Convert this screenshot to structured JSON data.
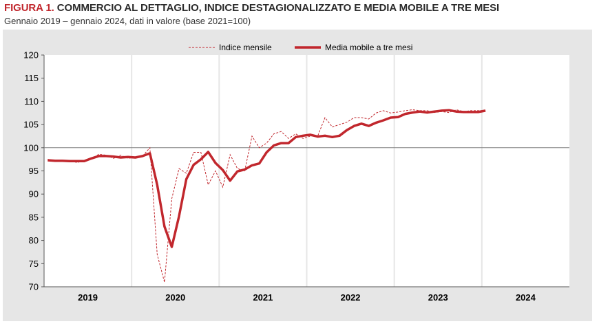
{
  "header": {
    "figure_label": "FIGURA 1.",
    "title": "COMMERCIO AL DETTAGLIO, INDICE DESTAGIONALIZZATO E MEDIA MOBILE A TRE MESI",
    "subtitle": "Gennaio 2019 – gennaio 2024, dati in valore (base 2021=100)"
  },
  "colors": {
    "accent": "#c1272d",
    "panel": "#e6e6e6",
    "plot": "#ffffff",
    "reference": "#7f7f7f"
  },
  "chart_data": {
    "type": "line",
    "title": "COMMERCIO AL DETTAGLIO, INDICE DESTAGIONALIZZATO E MEDIA MOBILE A TRE MESI",
    "xlabel": "",
    "ylabel": "",
    "ylim": [
      70,
      120
    ],
    "yticks": [
      70,
      75,
      80,
      85,
      90,
      95,
      100,
      105,
      110,
      115,
      120
    ],
    "year_labels": [
      "2019",
      "2020",
      "2021",
      "2022",
      "2023",
      "2024"
    ],
    "reference_line": 100,
    "legend_position": "top",
    "x": [
      "2019-01",
      "2019-02",
      "2019-03",
      "2019-04",
      "2019-05",
      "2019-06",
      "2019-07",
      "2019-08",
      "2019-09",
      "2019-10",
      "2019-11",
      "2019-12",
      "2020-01",
      "2020-02",
      "2020-03",
      "2020-04",
      "2020-05",
      "2020-06",
      "2020-07",
      "2020-08",
      "2020-09",
      "2020-10",
      "2020-11",
      "2020-12",
      "2021-01",
      "2021-02",
      "2021-03",
      "2021-04",
      "2021-05",
      "2021-06",
      "2021-07",
      "2021-08",
      "2021-09",
      "2021-10",
      "2021-11",
      "2021-12",
      "2022-01",
      "2022-02",
      "2022-03",
      "2022-04",
      "2022-05",
      "2022-06",
      "2022-07",
      "2022-08",
      "2022-09",
      "2022-10",
      "2022-11",
      "2022-12",
      "2023-01",
      "2023-02",
      "2023-03",
      "2023-04",
      "2023-05",
      "2023-06",
      "2023-07",
      "2023-08",
      "2023-09",
      "2023-10",
      "2023-11",
      "2023-12",
      "2024-01"
    ],
    "series": [
      {
        "name": "Indice mensile",
        "style": "dashed",
        "values": [
          97.5,
          97.2,
          97.0,
          97.3,
          96.8,
          97.2,
          97.5,
          98.6,
          98.4,
          97.7,
          98.4,
          97.7,
          98.0,
          98.2,
          100.0,
          77.0,
          71.0,
          89.0,
          95.5,
          94.5,
          99.0,
          99.0,
          92.0,
          95.0,
          91.5,
          98.5,
          95.5,
          95.0,
          102.5,
          100.0,
          101.0,
          103.0,
          103.5,
          102.0,
          103.0,
          102.0,
          102.5,
          102.5,
          106.5,
          104.5,
          105.0,
          105.5,
          106.5,
          106.5,
          106.2,
          107.5,
          108.0,
          107.5,
          107.7,
          108.0,
          108.2,
          108.0,
          108.0,
          107.6,
          107.8,
          107.6,
          108.2,
          107.8,
          108.0,
          108.0,
          108.0
        ]
      },
      {
        "name": "Media mobile a tre mesi",
        "style": "solid",
        "values": [
          97.3,
          97.2,
          97.2,
          97.1,
          97.1,
          97.1,
          97.7,
          98.2,
          98.2,
          98.1,
          97.9,
          98.0,
          97.9,
          98.2,
          98.8,
          92.0,
          83.0,
          78.6,
          85.2,
          93.2,
          96.3,
          97.5,
          99.1,
          96.7,
          95.2,
          92.9,
          94.9,
          95.3,
          96.2,
          96.6,
          99.0,
          100.5,
          101.0,
          101.0,
          102.3,
          102.6,
          102.8,
          102.4,
          102.6,
          102.3,
          102.6,
          103.8,
          104.7,
          105.2,
          104.7,
          105.4,
          105.9,
          106.5,
          106.6,
          107.3,
          107.6,
          107.8,
          107.6,
          107.8,
          108.0,
          108.1,
          107.8,
          107.7,
          107.7,
          107.7,
          108.0
        ]
      }
    ]
  }
}
